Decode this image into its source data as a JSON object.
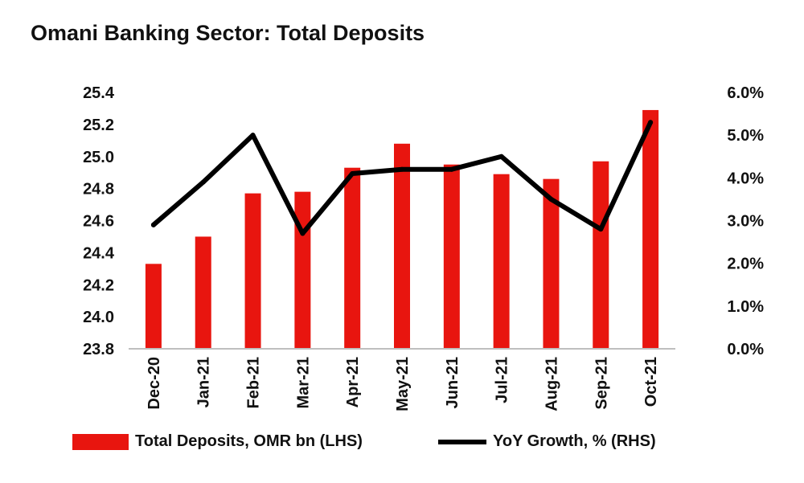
{
  "chart_data": {
    "type": "bar",
    "title": "Omani Banking Sector: Total Deposits",
    "categories": [
      "Dec-20",
      "Jan-21",
      "Feb-21",
      "Mar-21",
      "Apr-21",
      "May-21",
      "Jun-21",
      "Jul-21",
      "Aug-21",
      "Sep-21",
      "Oct-21"
    ],
    "series": [
      {
        "name": "Total Deposits, OMR bn (LHS)",
        "type": "bar",
        "axis": "left",
        "color": "#e8150f",
        "values": [
          24.33,
          24.5,
          24.77,
          24.78,
          24.93,
          25.08,
          24.95,
          24.89,
          24.86,
          24.97,
          25.29
        ]
      },
      {
        "name": "YoY Growth, % (RHS)",
        "type": "line",
        "axis": "right",
        "color": "#000000",
        "values": [
          2.9,
          3.9,
          5.0,
          2.7,
          4.1,
          4.2,
          4.2,
          4.5,
          3.5,
          2.8,
          5.3
        ]
      }
    ],
    "yaxis_left": {
      "ylim": [
        23.8,
        25.4
      ],
      "ticks": [
        "23.8",
        "24.0",
        "24.2",
        "24.4",
        "24.6",
        "24.8",
        "25.0",
        "25.2",
        "25.4"
      ]
    },
    "yaxis_right": {
      "ylim": [
        0.0,
        6.0
      ],
      "ticks": [
        "0.0%",
        "1.0%",
        "2.0%",
        "3.0%",
        "4.0%",
        "5.0%",
        "6.0%"
      ]
    },
    "grid": false,
    "legend_position": "bottom"
  }
}
